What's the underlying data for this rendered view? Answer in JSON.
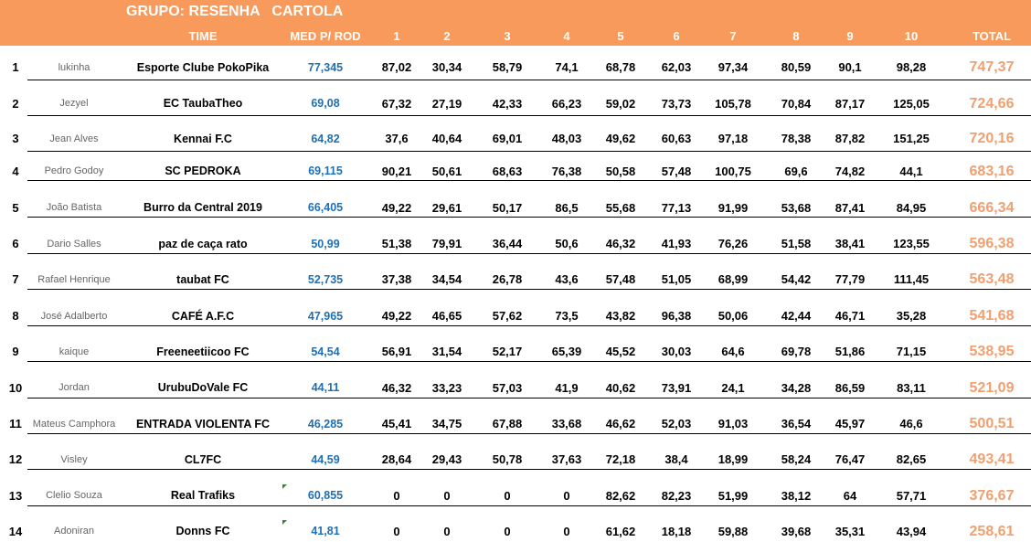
{
  "title": "GRUPO: RESENHA   CARTOLA",
  "headers": {
    "team": "TIME",
    "avg": "MED P/ ROD",
    "rounds": [
      "1",
      "2",
      "3",
      "4",
      "5",
      "6",
      "7",
      "8",
      "9",
      "10"
    ],
    "total": "TOTAL"
  },
  "rows": [
    {
      "rank": "1",
      "player": "lukinha",
      "team": "Esporte Clube PokoPika",
      "avg": "77,345",
      "scores": [
        "87,02",
        "30,34",
        "58,79",
        "74,1",
        "68,78",
        "62,03",
        "97,34",
        "80,59",
        "90,1",
        "98,28"
      ],
      "total": "747,37"
    },
    {
      "rank": "2",
      "player": "Jezyel",
      "team": "EC TaubaTheo",
      "avg": "69,08",
      "scores": [
        "67,32",
        "27,19",
        "42,33",
        "66,23",
        "59,02",
        "73,73",
        "105,78",
        "70,84",
        "87,17",
        "125,05"
      ],
      "total": "724,66"
    },
    {
      "rank": "3",
      "player": "Jean Alves",
      "team": "Kennai F.C",
      "avg": "64,82",
      "scores": [
        "37,6",
        "40,64",
        "69,01",
        "48,03",
        "49,62",
        "60,63",
        "97,18",
        "78,38",
        "87,82",
        "151,25"
      ],
      "total": "720,16"
    },
    {
      "rank": "4",
      "player": "Pedro Godoy",
      "team": "SC PEDROKA",
      "avg": "69,115",
      "scores": [
        "90,21",
        "50,61",
        "68,63",
        "76,38",
        "50,58",
        "57,48",
        "100,75",
        "69,6",
        "74,82",
        "44,1"
      ],
      "total": "683,16"
    },
    {
      "rank": "5",
      "player": "João Batista",
      "team": "Burro da Central 2019",
      "avg": "66,405",
      "scores": [
        "49,22",
        "29,61",
        "50,17",
        "86,5",
        "55,68",
        "77,13",
        "91,99",
        "53,68",
        "87,41",
        "84,95"
      ],
      "total": "666,34"
    },
    {
      "rank": "6",
      "player": "Dario Salles",
      "team": "paz de caça rato",
      "avg": "50,99",
      "scores": [
        "51,38",
        "79,91",
        "36,44",
        "50,6",
        "46,32",
        "41,93",
        "76,26",
        "51,58",
        "38,41",
        "123,55"
      ],
      "total": "596,38"
    },
    {
      "rank": "7",
      "player": "Rafael Henrique",
      "team": "taubat FC",
      "avg": "52,735",
      "scores": [
        "37,38",
        "34,54",
        "26,78",
        "43,6",
        "57,48",
        "51,05",
        "68,99",
        "54,42",
        "77,79",
        "111,45"
      ],
      "total": "563,48"
    },
    {
      "rank": "8",
      "player": "José Adalberto",
      "team": "CAFÉ A.F.C",
      "avg": "47,965",
      "scores": [
        "49,22",
        "46,65",
        "57,62",
        "73,5",
        "43,82",
        "96,38",
        "50,06",
        "42,44",
        "46,71",
        "35,28"
      ],
      "total": "541,68"
    },
    {
      "rank": "9",
      "player": "kaique",
      "team": "Freeneetiicoo FC",
      "avg": "54,54",
      "scores": [
        "56,91",
        "31,54",
        "52,17",
        "65,39",
        "45,52",
        "30,03",
        "64,6",
        "69,78",
        "51,86",
        "71,15"
      ],
      "total": "538,95"
    },
    {
      "rank": "10",
      "player": "Jordan",
      "team": "UrubuDoVale FC",
      "avg": "44,11",
      "scores": [
        "46,32",
        "33,23",
        "57,03",
        "41,9",
        "40,62",
        "73,91",
        "24,1",
        "34,28",
        "86,59",
        "83,11"
      ],
      "total": "521,09"
    },
    {
      "rank": "11",
      "player": "Mateus Camphora",
      "team": "ENTRADA VIOLENTA FC",
      "avg": "46,285",
      "scores": [
        "45,41",
        "34,75",
        "67,88",
        "33,68",
        "46,62",
        "52,03",
        "91,03",
        "36,54",
        "45,97",
        "46,6"
      ],
      "total": "500,51"
    },
    {
      "rank": "12",
      "player": "Visley",
      "team": "CL7FC",
      "avg": "44,59",
      "scores": [
        "28,64",
        "29,43",
        "50,78",
        "37,63",
        "72,18",
        "38,4",
        "18,99",
        "58,24",
        "76,47",
        "82,65"
      ],
      "total": "493,41"
    },
    {
      "rank": "13",
      "player": "Clelio Souza",
      "team": "Real Trafiks",
      "avg": "60,855",
      "scores": [
        "0",
        "0",
        "0",
        "0",
        "82,62",
        "82,23",
        "51,99",
        "38,12",
        "64",
        "57,71"
      ],
      "total": "376,67"
    },
    {
      "rank": "14",
      "player": "Adoniran",
      "team": "Donns FC",
      "avg": "41,81",
      "scores": [
        "0",
        "0",
        "0",
        "0",
        "61,62",
        "18,18",
        "59,88",
        "39,68",
        "35,31",
        "43,94"
      ],
      "total": "258,61"
    }
  ],
  "colors": {
    "header_bg": "#f79a5c",
    "avg": "#1f6fb5",
    "total": "#f0a070",
    "marker": "#2e8b2e"
  }
}
